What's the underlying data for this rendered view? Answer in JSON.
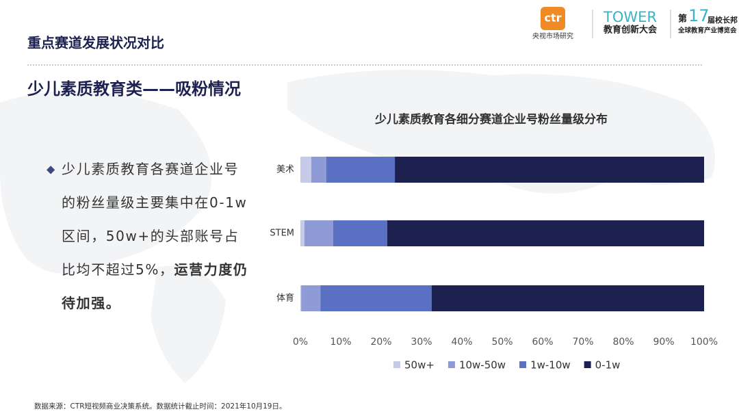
{
  "header": {
    "title": "重点赛道发展状况对比",
    "subtitle": "少儿素质教育类——吸粉情况"
  },
  "logos": {
    "ctr": "ctr",
    "ctr_name": "央视市场研究",
    "tower": "TOWER",
    "tower_name": "教育创新大会",
    "expo_prefix": "第",
    "expo_number": "17",
    "expo_suffix": "届校长邦",
    "expo_name": "全球教育产业博览会"
  },
  "bullet": {
    "lines": [
      [
        {
          "text": "少儿素质教育各赛道企业号",
          "bold": false
        }
      ],
      [
        {
          "text": "的粉丝量级主要集中在0-1w",
          "bold": false
        }
      ],
      [
        {
          "text": "区间，50w+的头部账号占",
          "bold": false
        }
      ],
      [
        {
          "text": "比均不超过5%，",
          "bold": false
        },
        {
          "text": "运营力度仍",
          "bold": true
        }
      ],
      [
        {
          "text": "待加强。",
          "bold": true
        }
      ]
    ]
  },
  "footnote": "数据来源：CTR短视频商业决策系统。数据统计截止时间：2021年10月19日。",
  "chart_data": {
    "type": "stacked_bar_horizontal",
    "title": "少儿素质教育各细分赛道企业号粉丝量级分布",
    "categories": [
      "美术",
      "STEM",
      "体育"
    ],
    "series": [
      {
        "name": "50w+",
        "color": "#c5cbe8",
        "values": [
          2.7,
          1.0,
          0.2
        ]
      },
      {
        "name": "10w-50w",
        "color": "#8e9bd6",
        "values": [
          3.7,
          7.1,
          4.8
        ]
      },
      {
        "name": "1w-10w",
        "color": "#5a70c2",
        "values": [
          17.0,
          13.4,
          27.5
        ]
      },
      {
        "name": "0-1w",
        "color": "#1c2150",
        "values": [
          76.6,
          78.5,
          67.5
        ]
      }
    ],
    "xlim": [
      0,
      100
    ],
    "xticks": [
      {
        "value": 0,
        "label": "0%"
      },
      {
        "value": 10,
        "label": "10%"
      },
      {
        "value": 20,
        "label": "20%"
      },
      {
        "value": 30,
        "label": "30%"
      },
      {
        "value": 40,
        "label": "40%"
      },
      {
        "value": 50,
        "label": "50%"
      },
      {
        "value": 60,
        "label": "60%"
      },
      {
        "value": 70,
        "label": "70%"
      },
      {
        "value": 80,
        "label": "80%"
      },
      {
        "value": 90,
        "label": "90%"
      },
      {
        "value": 100,
        "label": "100%"
      }
    ],
    "grid": false,
    "legend": "bottom"
  }
}
